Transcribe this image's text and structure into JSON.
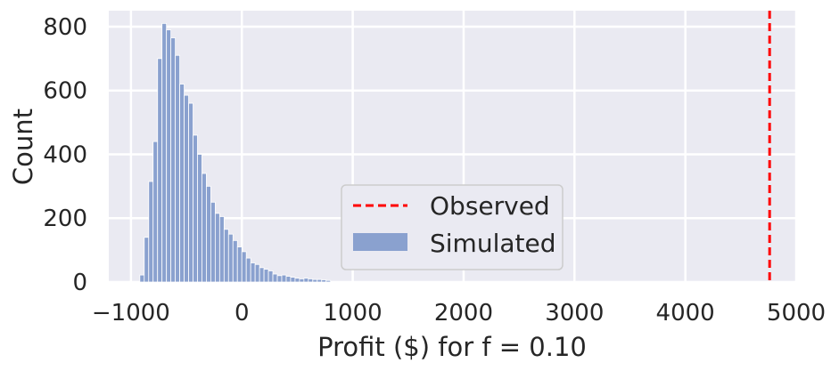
{
  "chart_data": {
    "type": "bar",
    "xlabel": "Profit ($) for f = 0.10",
    "ylabel": "Count",
    "xlim": [
      -1200,
      5000
    ],
    "ylim": [
      0,
      850
    ],
    "xticks": [
      -1000,
      0,
      1000,
      2000,
      3000,
      4000,
      5000
    ],
    "xtick_labels": [
      "−1000",
      "0",
      "1000",
      "2000",
      "3000",
      "4000",
      "5000"
    ],
    "yticks": [
      0,
      200,
      400,
      600,
      800
    ],
    "ytick_labels": [
      "0",
      "200",
      "400",
      "600",
      "800"
    ],
    "grid": true,
    "legend_position": "lower-center",
    "observed": {
      "name": "Observed",
      "x": 4760,
      "color": "#ff0000",
      "style": "dashed"
    },
    "histogram": {
      "name": "Simulated",
      "color": "#8aa1cf",
      "bin_width": 40,
      "bin_start": -920,
      "counts": [
        22,
        140,
        315,
        440,
        700,
        810,
        790,
        765,
        710,
        620,
        585,
        560,
        460,
        400,
        340,
        300,
        250,
        215,
        205,
        165,
        150,
        130,
        110,
        95,
        75,
        60,
        55,
        45,
        40,
        35,
        25,
        20,
        22,
        18,
        15,
        12,
        10,
        12,
        10,
        8,
        8,
        7,
        5
      ]
    }
  }
}
